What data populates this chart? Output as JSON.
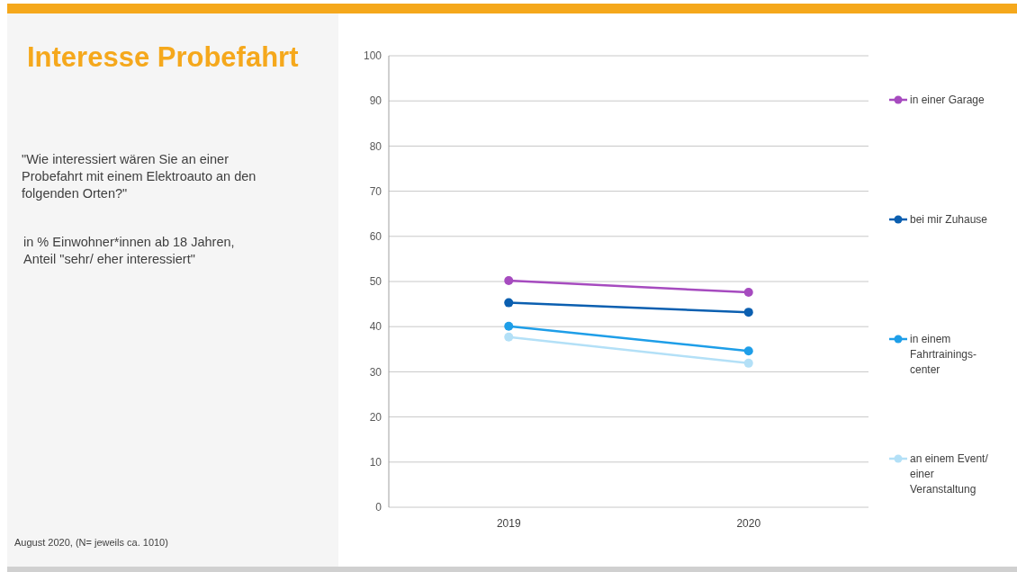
{
  "chart_data": {
    "type": "line",
    "title": "Interesse Probefahrt",
    "subtitle": "\"Wie interessiert wären Sie an einer Probefahrt mit einem Elektroauto an den folgenden Orten?\"",
    "annotations": [
      "in % Einwohner*innen ab 18 Jahren, Anteil \"sehr/ eher interessiert\"",
      "August 2020, (N= jeweils ca. 1010)"
    ],
    "categories": [
      "2019",
      "2020"
    ],
    "series": [
      {
        "name": "in einer Garage",
        "color": "#a64bbf",
        "values": [
          50.2,
          47.6
        ]
      },
      {
        "name": "bei mir Zuhause",
        "color": "#0b5fb0",
        "values": [
          45.3,
          43.2
        ]
      },
      {
        "name": "in einem Fahrtrainings-center",
        "color": "#1e9ee8",
        "values": [
          40.1,
          34.6
        ]
      },
      {
        "name": "an einem Event/ einer Veranstaltung",
        "color": "#b3e0f7",
        "values": [
          37.7,
          31.9
        ]
      }
    ],
    "ylim": [
      0,
      100
    ],
    "yticks": [
      0,
      10,
      20,
      30,
      40,
      50,
      60,
      70,
      80,
      90,
      100
    ],
    "grid": "y",
    "legend": "right",
    "marker": "circle",
    "line_style": "solid"
  }
}
